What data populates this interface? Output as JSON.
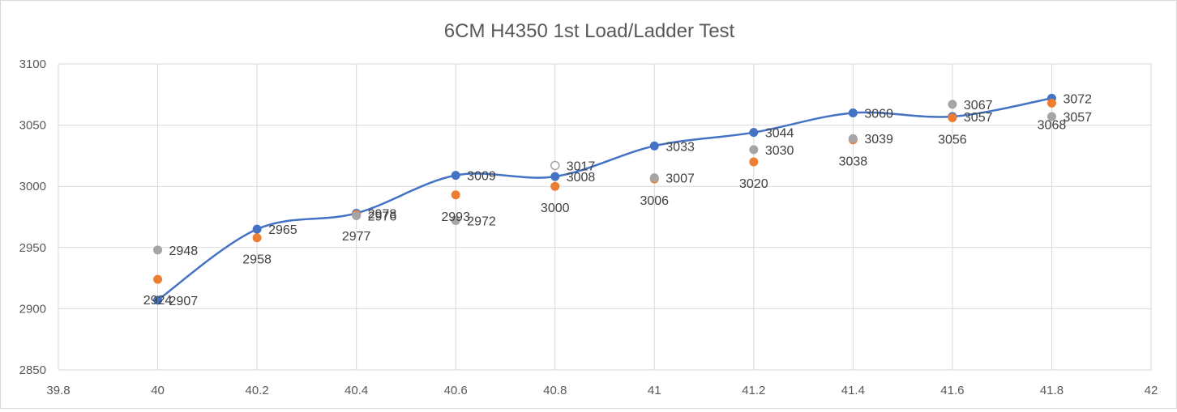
{
  "chart_data": {
    "type": "scatter",
    "title": "6CM H4350 1st Load/Ladder Test",
    "xlabel": "",
    "ylabel": "",
    "xlim": [
      39.8,
      42
    ],
    "ylim": [
      2850,
      3100
    ],
    "x_ticks": [
      "39.8",
      "40",
      "40.2",
      "40.4",
      "40.6",
      "40.8",
      "41",
      "41.2",
      "41.4",
      "41.6",
      "41.8",
      "42"
    ],
    "y_ticks": [
      "2850",
      "2900",
      "2950",
      "3000",
      "3050",
      "3100"
    ],
    "grid": true,
    "legend": "none",
    "series": [
      {
        "color": "#4472c4",
        "line": "smooth",
        "x": [
          40,
          40.2,
          40.4,
          40.6,
          40.8,
          41,
          41.2,
          41.4,
          41.6,
          41.8
        ],
        "y": [
          2907,
          2965,
          2978,
          3009,
          3008,
          3033,
          3044,
          3060,
          3057,
          3072
        ],
        "labels": [
          "2907",
          "2965",
          "2978",
          "3009",
          "3008",
          "3033",
          "3044",
          "3060",
          "3057",
          "3072"
        ]
      },
      {
        "color": "#ed7d31",
        "line": "none",
        "x": [
          40,
          40.2,
          40.4,
          40.6,
          40.8,
          41,
          41.2,
          41.4,
          41.6,
          41.8
        ],
        "y": [
          2924,
          2958,
          2977,
          2993,
          3000,
          3006,
          3020,
          3038,
          3056,
          3068
        ],
        "labels": [
          "2924",
          "2958",
          "2977",
          "2993",
          "3000",
          "3006",
          "3020",
          "3038",
          "3056",
          "3068"
        ]
      },
      {
        "color": "#a5a5a5",
        "line": "none",
        "x": [
          40,
          40.4,
          40.6,
          40.8,
          41,
          41.2,
          41.4,
          41.6,
          41.8
        ],
        "y": [
          2948,
          2976,
          2972,
          3017,
          3007,
          3030,
          3039,
          3067,
          3057
        ],
        "labels": [
          "2948",
          "2976",
          "2972",
          "3017",
          "3007",
          "3030",
          "3039",
          "3067",
          "3057"
        ],
        "hollow": [
          false,
          false,
          false,
          true,
          false,
          false,
          false,
          false,
          false
        ]
      }
    ]
  }
}
